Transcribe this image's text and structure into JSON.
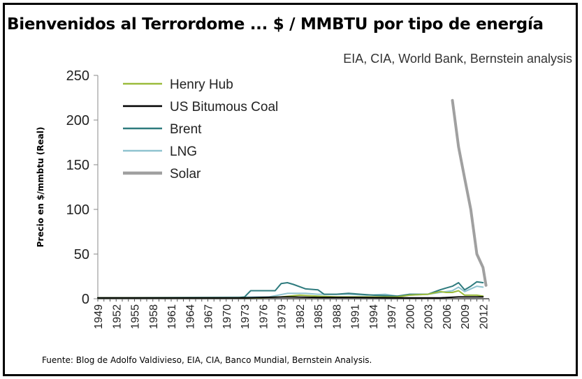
{
  "title": "Bienvenidos al Terrordome ... $ / MMBTU por tipo de energía",
  "subtitle": "EIA, CIA, World Bank, Bernstein analysis",
  "source": "Fuente:  Blog de Adolfo Valdivieso, EIA, CIA, Banco Mundial, Bernstein Analysis.",
  "chart_data": {
    "type": "line",
    "title": "Bienvenidos al Terrordome ... $ / MMBTU por tipo de energía",
    "xlabel": "",
    "ylabel": "Precio en $/mmbtu (Real)",
    "ylim": [
      0,
      250
    ],
    "xlim": [
      1949,
      2013
    ],
    "y_ticks": [
      "0",
      "50",
      "100",
      "150",
      "200",
      "250"
    ],
    "x_ticks": [
      "1949",
      "1952",
      "1955",
      "1958",
      "1961",
      "1964",
      "1967",
      "1970",
      "1973",
      "1976",
      "1979",
      "1982",
      "1985",
      "1988",
      "1991",
      "1994",
      "1997",
      "2000",
      "2003",
      "2006",
      "2009",
      "2012"
    ],
    "grid": false,
    "legend_position": "top-left",
    "series": [
      {
        "name": "Henry Hub",
        "color": "#9bbb3c",
        "width": 2,
        "x": [
          1949,
          1970,
          1975,
          1979,
          1982,
          1985,
          1988,
          1992,
          1995,
          1998,
          2000,
          2003,
          2005,
          2006,
          2007,
          2008,
          2009,
          2010,
          2011,
          2012
        ],
        "y": [
          1,
          1,
          1,
          2,
          4,
          3,
          2,
          2,
          2,
          2,
          4,
          5,
          8,
          7,
          7,
          9,
          4,
          4,
          4,
          3
        ]
      },
      {
        "name": "US Bitumous Coal",
        "color": "#000000",
        "width": 2,
        "x": [
          1949,
          1973,
          1976,
          1980,
          1985,
          1990,
          2000,
          2005,
          2008,
          2010,
          2012
        ],
        "y": [
          1,
          1,
          1.5,
          2,
          1.5,
          1.5,
          1,
          1,
          2,
          2,
          2
        ]
      },
      {
        "name": "Brent",
        "color": "#2e7b7e",
        "width": 2,
        "x": [
          1949,
          1972,
          1973,
          1974,
          1978,
          1979,
          1980,
          1981,
          1983,
          1985,
          1986,
          1988,
          1990,
          1994,
          1998,
          2000,
          2003,
          2005,
          2006,
          2007,
          2008,
          2009,
          2010,
          2011,
          2012
        ],
        "y": [
          1,
          1,
          2,
          9,
          9,
          17,
          18,
          16,
          11,
          10,
          5,
          5,
          6,
          4,
          3,
          5,
          5,
          10,
          12,
          14,
          18,
          10,
          14,
          19,
          18
        ]
      },
      {
        "name": "LNG",
        "color": "#8fc3cf",
        "width": 2,
        "x": [
          1949,
          1977,
          1980,
          1983,
          1985,
          1988,
          1990,
          1993,
          1996,
          1998,
          2000,
          2003,
          2005,
          2007,
          2008,
          2009,
          2010,
          2011,
          2012
        ],
        "y": [
          1,
          2,
          6,
          6,
          5,
          5,
          5,
          4,
          5,
          3,
          4,
          5,
          7,
          9,
          13,
          8,
          11,
          14,
          13
        ]
      },
      {
        "name": "Solar",
        "color": "#a0a0a0",
        "width": 4,
        "x": [
          2007,
          2008,
          2009,
          2010,
          2011,
          2012,
          2012.5
        ],
        "y": [
          222,
          170,
          135,
          100,
          50,
          35,
          15
        ]
      }
    ]
  }
}
